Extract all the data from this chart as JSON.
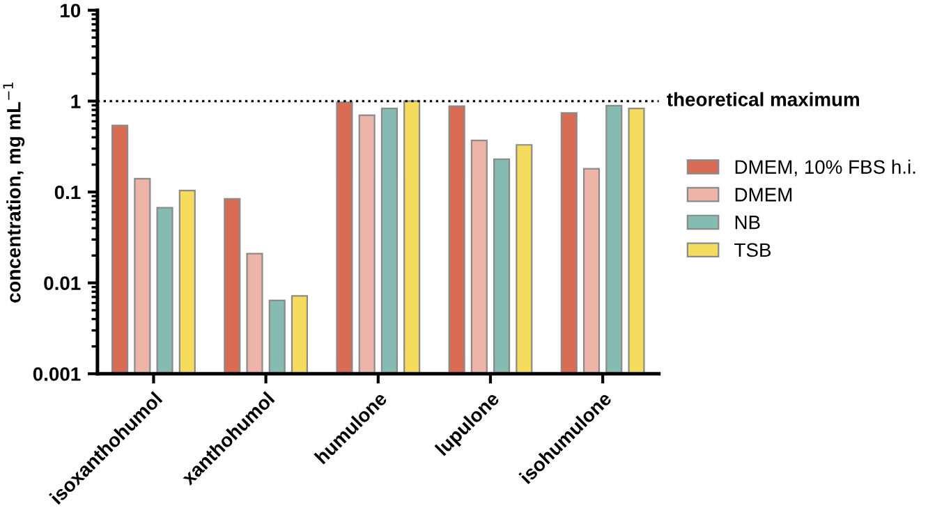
{
  "chart_data": {
    "type": "bar",
    "ylabel": "concentration, mg mL$^{−1}$",
    "categories": [
      "isoxanthohumol",
      "xanthohumol",
      "humulone",
      "lupulone",
      "isohumulone"
    ],
    "series": [
      {
        "name": "DMEM, 10% FBS h.i.",
        "color": "#d96c54",
        "values": [
          0.54,
          0.084,
          0.97,
          0.88,
          0.74
        ]
      },
      {
        "name": "DMEM",
        "color": "#ecb5a8",
        "values": [
          0.14,
          0.021,
          0.7,
          0.37,
          0.18
        ]
      },
      {
        "name": "NB",
        "color": "#86bbb1",
        "values": [
          0.067,
          0.0064,
          0.83,
          0.23,
          0.89
        ]
      },
      {
        "name": "TSB",
        "color": "#f6dc5c",
        "values": [
          0.104,
          0.0072,
          1.0,
          0.33,
          0.83
        ]
      }
    ],
    "log": "y",
    "ylim": [
      0.001,
      10
    ],
    "yticks": [
      0.001,
      0.01,
      0.1,
      1,
      10
    ],
    "ref_lines": [
      {
        "axis": "y",
        "value": 1,
        "label": "theoretical maximum",
        "line_style": "dotted",
        "color": "#000000"
      }
    ],
    "legend": "right",
    "grid": false
  }
}
